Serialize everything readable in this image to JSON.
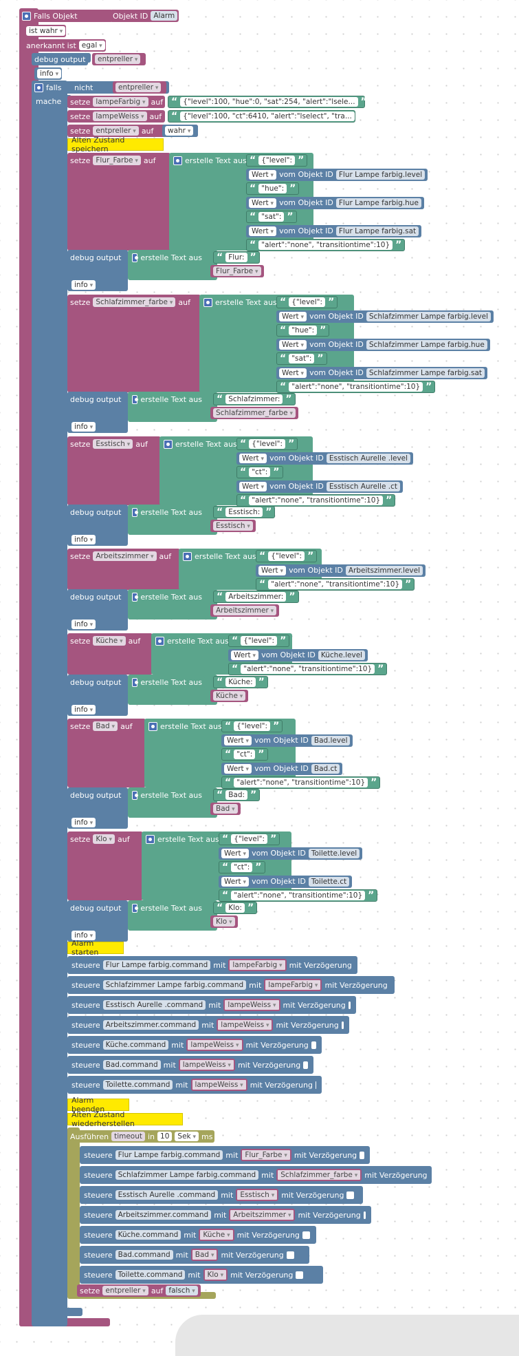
{
  "event": {
    "title": "Falls Objekt",
    "oid_label": "Objekt ID",
    "oid_value": "Alarm",
    "cond": "ist wahr",
    "ack_label": "anerkannt ist",
    "ack_value": "egal",
    "debug_label": "debug output",
    "debug_var": "entpreller",
    "info": "info"
  },
  "falls": {
    "label": "falls",
    "not": "nicht",
    "var": "entpreller",
    "mache": "mache"
  },
  "vars": [
    {
      "name": "lampeFarbig",
      "op": "auf",
      "text": "{\"level\":100, \"hue\":0, \"sat\":254, \"alert\":\"lsele..."
    },
    {
      "name": "lampeWeiss",
      "op": "auf",
      "text": "{\"level\":100, \"ct\":6410, \"alert\":\"lselect\", \"tra..."
    },
    {
      "name": "entpreller",
      "op": "auf",
      "value": "wahr"
    }
  ],
  "words": {
    "setze": "setze",
    "auf": "auf",
    "create_text": "erstelle Text aus",
    "wert": "Wert",
    "vom_objekt": "vom Objekt ID",
    "debug": "debug output",
    "info": "info",
    "steuere": "steuere",
    "mit": "mit",
    "verz": "mit Verzögerung"
  },
  "comments": {
    "save": "Alten Zustand speichern",
    "start": "Alarm starten",
    "end": "Alarm beenden",
    "restore": "Alten Zustand wiederherstellen"
  },
  "save_blocks": [
    {
      "var": "Flur_Farbe",
      "parts": [
        {
          "t": "s",
          "v": "{\"level\":"
        },
        {
          "t": "o",
          "v": "Flur Lampe farbig.level"
        },
        {
          "t": "s",
          "v": "\"hue\":"
        },
        {
          "t": "o",
          "v": "Flur Lampe farbig.hue"
        },
        {
          "t": "s",
          "v": "\"sat\":"
        },
        {
          "t": "o",
          "v": "Flur Lampe farbig.sat"
        },
        {
          "t": "s",
          "v": "\"alert\":\"none\", \"transitiontime\":10}"
        }
      ],
      "dbg": "Flur:"
    },
    {
      "var": "Schlafzimmer_farbe",
      "parts": [
        {
          "t": "s",
          "v": "{\"level\":"
        },
        {
          "t": "o",
          "v": "Schlafzimmer Lampe farbig.level"
        },
        {
          "t": "s",
          "v": "\"hue\":"
        },
        {
          "t": "o",
          "v": "Schlafzimmer Lampe farbig.hue"
        },
        {
          "t": "s",
          "v": "\"sat\":"
        },
        {
          "t": "o",
          "v": "Schlafzimmer Lampe farbig.sat"
        },
        {
          "t": "s",
          "v": "\"alert\":\"none\", \"transitiontime\":10}"
        }
      ],
      "dbg": "Schlafzimmer:"
    },
    {
      "var": "Esstisch",
      "parts": [
        {
          "t": "s",
          "v": "{\"level\":"
        },
        {
          "t": "o",
          "v": "Esstisch Aurelle .level"
        },
        {
          "t": "s",
          "v": "\"ct\":"
        },
        {
          "t": "o",
          "v": "Esstisch Aurelle .ct"
        },
        {
          "t": "s",
          "v": "\"alert\":\"none\", \"transitiontime\":10}"
        }
      ],
      "dbg": "Esstisch:"
    },
    {
      "var": "Arbeitszimmer",
      "parts": [
        {
          "t": "s",
          "v": "{\"level\":"
        },
        {
          "t": "o",
          "v": "Arbeitszimmer.level"
        },
        {
          "t": "s",
          "v": "\"alert\":\"none\", \"transitiontime\":10}"
        }
      ],
      "dbg": "Arbeitszimmer:"
    },
    {
      "var": "Küche",
      "parts": [
        {
          "t": "s",
          "v": "{\"level\":"
        },
        {
          "t": "o",
          "v": "Küche.level"
        },
        {
          "t": "s",
          "v": "\"alert\":\"none\", \"transitiontime\":10}"
        }
      ],
      "dbg": "Küche:"
    },
    {
      "var": "Bad",
      "parts": [
        {
          "t": "s",
          "v": "{\"level\":"
        },
        {
          "t": "o",
          "v": "Bad.level"
        },
        {
          "t": "s",
          "v": "\"ct\":"
        },
        {
          "t": "o",
          "v": "Bad.ct"
        },
        {
          "t": "s",
          "v": "\"alert\":\"none\", \"transitiontime\":10}"
        }
      ],
      "dbg": "Bad:"
    },
    {
      "var": "Klo",
      "parts": [
        {
          "t": "s",
          "v": "{\"level\":"
        },
        {
          "t": "o",
          "v": "Toilette.level"
        },
        {
          "t": "s",
          "v": "\"ct\":"
        },
        {
          "t": "o",
          "v": "Toilette.ct"
        },
        {
          "t": "s",
          "v": "\"alert\":\"none\", \"transitiontime\":10}"
        }
      ],
      "dbg": "Klo:"
    }
  ],
  "start_controls": [
    {
      "obj": "Flur Lampe farbig.command",
      "var": "lampeFarbig"
    },
    {
      "obj": "Schlafzimmer Lampe farbig.command",
      "var": "lampeFarbig"
    },
    {
      "obj": "Esstisch Aurelle .command",
      "var": "lampeWeiss"
    },
    {
      "obj": "Arbeitszimmer.command",
      "var": "lampeWeiss"
    },
    {
      "obj": "Küche.command",
      "var": "lampeWeiss"
    },
    {
      "obj": "Bad.command",
      "var": "lampeWeiss"
    },
    {
      "obj": "Toilette.command",
      "var": "lampeWeiss"
    }
  ],
  "timeout": {
    "label": "Ausführen",
    "name": "timeout",
    "in": "in",
    "value": "10",
    "unit": "Sek",
    "ms": "ms"
  },
  "restore_controls": [
    {
      "obj": "Flur Lampe farbig.command",
      "var": "Flur_Farbe"
    },
    {
      "obj": "Schlafzimmer Lampe farbig.command",
      "var": "Schlafzimmer_farbe"
    },
    {
      "obj": "Esstisch Aurelle .command",
      "var": "Esstisch"
    },
    {
      "obj": "Arbeitszimmer.command",
      "var": "Arbeitszimmer"
    },
    {
      "obj": "Küche.command",
      "var": "Küche"
    },
    {
      "obj": "Bad.command",
      "var": "Bad"
    },
    {
      "obj": "Toilette.command",
      "var": "Klo"
    }
  ],
  "final": {
    "var": "entpreller",
    "op": "auf",
    "value": "falsch"
  },
  "colors": {
    "event": "#a5557f",
    "logic": "#5b80a5",
    "text": "#5ba58c",
    "timeout": "#a5a55b",
    "comment": "#ffea00"
  }
}
